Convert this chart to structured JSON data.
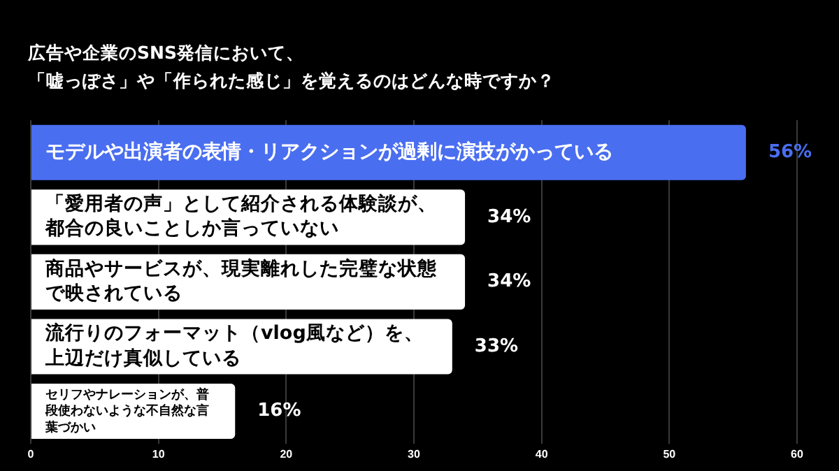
{
  "chart_data": {
    "type": "bar",
    "orientation": "horizontal",
    "title": "広告や企業のSNS発信において、",
    "subtitle": "「嘘っぽさ」や「作られた感じ」を覚えるのはどんな時ですか？",
    "categories": [
      "モデルや出演者の表情・リアクションが過剰に演技がかっている",
      "「愛用者の声」として紹介される体験談が、都合の良いことしか言っていない",
      "商品やサービスが、現実離れした完璧な状態で映されている",
      "流行りのフォーマット（vlog風など）を、上辺だけ真似している",
      "セリフやナレーションが、普段使わないような不自然な言葉づかい"
    ],
    "values": [
      56,
      34,
      34,
      33,
      16
    ],
    "value_labels": [
      "56%",
      "34%",
      "34%",
      "33%",
      "16%"
    ],
    "colors": [
      "#4a6ef0",
      "#ffffff",
      "#ffffff",
      "#ffffff",
      "#ffffff"
    ],
    "xlim": [
      0,
      60
    ],
    "xticks": [
      0,
      10,
      20,
      30,
      40,
      50,
      60
    ],
    "grid": "x",
    "legend": false
  }
}
